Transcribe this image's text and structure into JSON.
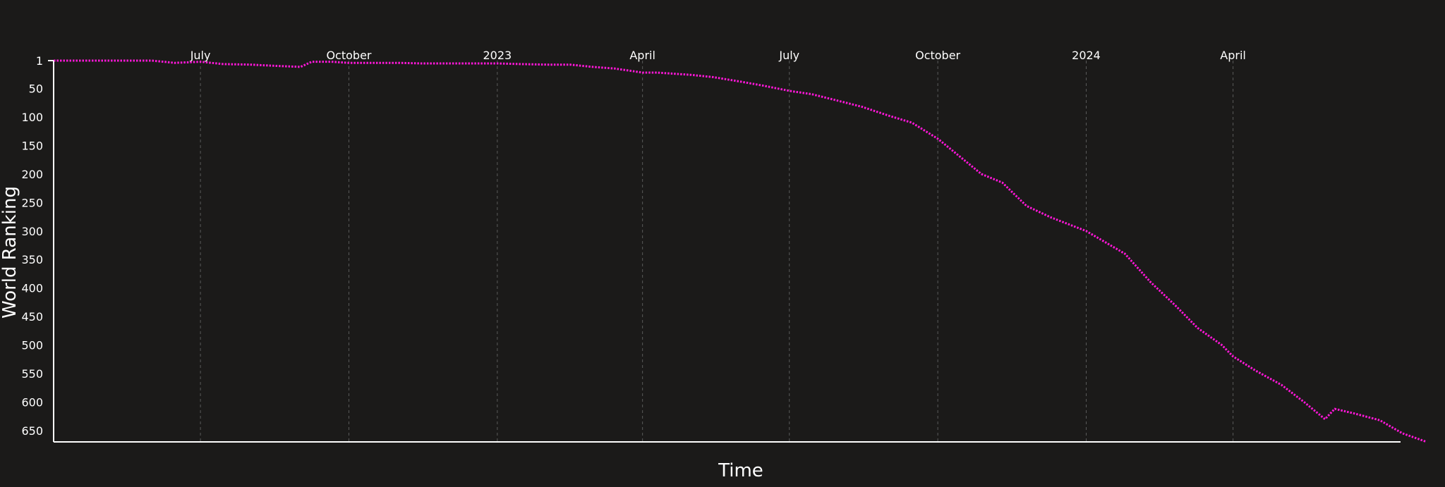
{
  "chart_data": {
    "type": "line",
    "title": "",
    "xlabel": "Time",
    "ylabel": "World Ranking",
    "x_ticks": [
      "July",
      "October",
      "2023",
      "April",
      "July",
      "October",
      "2024",
      "April"
    ],
    "y_ticks": [
      1,
      50,
      100,
      150,
      200,
      250,
      300,
      350,
      400,
      450,
      500,
      550,
      600,
      650
    ],
    "ylim": [
      1,
      670
    ],
    "y_inverted": true,
    "grid": "vertical dashed lines at x ticks",
    "colors": {
      "background": "#1b1a19",
      "line": "#ff17d8",
      "axis": "#ffffff",
      "grid": "#5a5a5a",
      "text": "#ffffff"
    },
    "series": [
      {
        "points": [
          [
            "2022-04-01",
            1
          ],
          [
            "2022-05-01",
            1
          ],
          [
            "2022-06-01",
            1
          ],
          [
            "2022-06-15",
            5
          ],
          [
            "2022-07-01",
            3
          ],
          [
            "2022-07-15",
            7
          ],
          [
            "2022-08-01",
            8
          ],
          [
            "2022-08-15",
            10
          ],
          [
            "2022-09-01",
            12
          ],
          [
            "2022-09-08",
            3
          ],
          [
            "2022-09-20",
            3
          ],
          [
            "2022-10-01",
            5
          ],
          [
            "2022-10-15",
            5
          ],
          [
            "2022-11-01",
            5
          ],
          [
            "2022-11-15",
            6
          ],
          [
            "2022-12-01",
            6
          ],
          [
            "2022-12-15",
            6
          ],
          [
            "2023-01-01",
            6
          ],
          [
            "2023-01-15",
            7
          ],
          [
            "2023-02-01",
            8
          ],
          [
            "2023-02-15",
            8
          ],
          [
            "2023-03-01",
            12
          ],
          [
            "2023-03-15",
            15
          ],
          [
            "2023-03-25",
            19
          ],
          [
            "2023-04-01",
            22
          ],
          [
            "2023-04-10",
            22
          ],
          [
            "2023-05-01",
            26
          ],
          [
            "2023-05-15",
            30
          ],
          [
            "2023-06-01",
            38
          ],
          [
            "2023-06-15",
            45
          ],
          [
            "2023-07-01",
            54
          ],
          [
            "2023-07-15",
            60
          ],
          [
            "2023-08-01",
            72
          ],
          [
            "2023-08-15",
            82
          ],
          [
            "2023-09-01",
            98
          ],
          [
            "2023-09-15",
            110
          ],
          [
            "2023-10-01",
            138
          ],
          [
            "2023-10-15",
            170
          ],
          [
            "2023-10-28",
            200
          ],
          [
            "2023-11-10",
            215
          ],
          [
            "2023-11-25",
            256
          ],
          [
            "2023-12-10",
            276
          ],
          [
            "2024-01-01",
            300
          ],
          [
            "2024-01-10",
            315
          ],
          [
            "2024-01-25",
            340
          ],
          [
            "2024-02-10",
            390
          ],
          [
            "2024-02-25",
            430
          ],
          [
            "2024-03-10",
            470
          ],
          [
            "2024-03-25",
            500
          ],
          [
            "2024-04-01",
            520
          ],
          [
            "2024-04-15",
            545
          ],
          [
            "2024-05-01",
            570
          ],
          [
            "2024-05-15",
            600
          ],
          [
            "2024-05-28",
            630
          ],
          [
            "2024-06-03",
            612
          ],
          [
            "2024-06-15",
            620
          ],
          [
            "2024-07-01",
            632
          ],
          [
            "2024-07-15",
            655
          ],
          [
            "2024-07-30",
            670
          ]
        ]
      }
    ]
  }
}
